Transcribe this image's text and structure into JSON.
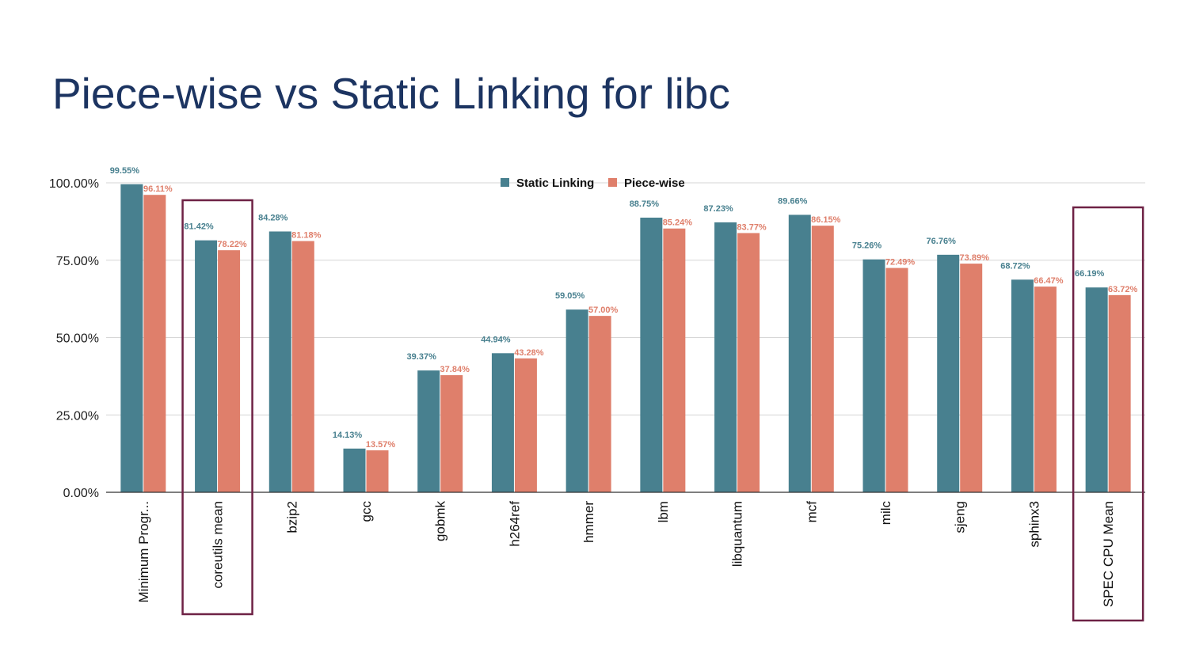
{
  "slide": {
    "title": "Piece-wise vs Static Linking for libc"
  },
  "chart_data": {
    "type": "bar",
    "title": "",
    "xlabel": "",
    "ylabel": "",
    "ylim": [
      0,
      100
    ],
    "yticks": [
      "0.00%",
      "25.00%",
      "50.00%",
      "75.00%",
      "100.00%"
    ],
    "ytick_values": [
      0,
      25,
      50,
      75,
      100
    ],
    "grid": true,
    "legend_position": "top-center",
    "categories": [
      "Minimum Progr...",
      "coreutils mean",
      "bzip2",
      "gcc",
      "gobmk",
      "h264ref",
      "hmmer",
      "lbm",
      "libquantum",
      "mcf",
      "milc",
      "sjeng",
      "sphinx3",
      "SPEC CPU Mean"
    ],
    "highlighted_categories": [
      "coreutils mean",
      "SPEC CPU Mean"
    ],
    "series": [
      {
        "name": "Static Linking",
        "color": "#48808f",
        "values": [
          99.55,
          81.42,
          84.28,
          14.13,
          39.37,
          44.94,
          59.05,
          88.75,
          87.23,
          89.66,
          75.26,
          76.76,
          68.72,
          66.19
        ],
        "labels": [
          "99.55%",
          "81.42%",
          "84.28%",
          "14.13%",
          "39.37%",
          "44.94%",
          "59.05%",
          "88.75%",
          "87.23%",
          "89.66%",
          "75.26%",
          "76.76%",
          "68.72%",
          "66.19%"
        ]
      },
      {
        "name": "Piece-wise",
        "color": "#df7f6b",
        "values": [
          96.11,
          78.22,
          81.18,
          13.57,
          37.84,
          43.28,
          57.0,
          85.24,
          83.77,
          86.15,
          72.49,
          73.89,
          66.47,
          63.72
        ],
        "labels": [
          "96.11%",
          "78.22%",
          "81.18%",
          "13.57%",
          "37.84%",
          "43.28%",
          "57.00%",
          "85.24%",
          "83.77%",
          "86.15%",
          "72.49%",
          "73.89%",
          "66.47%",
          "63.72%"
        ]
      }
    ],
    "highlight_color": "#6e2245"
  }
}
